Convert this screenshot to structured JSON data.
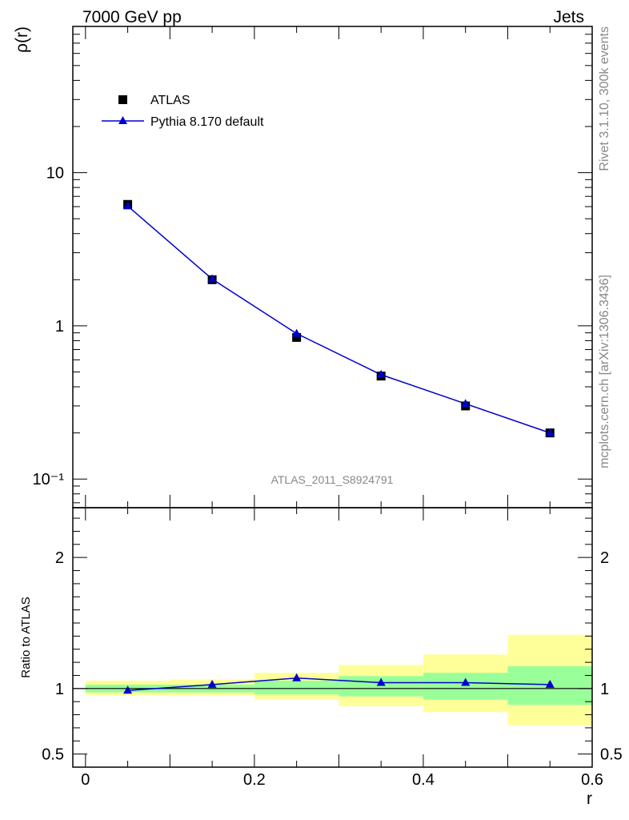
{
  "header": {
    "left_title": "7000 GeV pp",
    "right_title": "Jets"
  },
  "side_labels": {
    "rivet": "Rivet 3.1.10,  300k events",
    "mcplots": "mcplots.cern.ch [arXiv:1306.3436]"
  },
  "watermark": "ATLAS_2011_S8924791",
  "colors": {
    "data": "#000000",
    "mc": "#0000cc",
    "band_inner": "#99ff99",
    "band_outer": "#ffff99"
  },
  "legend": [
    {
      "label": "ATLAS",
      "marker": "square-marker"
    },
    {
      "label": "Pythia 8.170 default",
      "marker": "triangle-marker"
    }
  ],
  "chart_data": [
    {
      "type": "scatter",
      "title": "",
      "xlabel": "",
      "ylabel": "ρ(r)",
      "yscale": "log",
      "xlim": [
        -0.015,
        0.6
      ],
      "ylim": [
        0.065,
        90
      ],
      "y_tick_labels": [
        {
          "v": 10,
          "t": "10"
        },
        {
          "v": 1,
          "t": "1"
        },
        {
          "v": 0.1,
          "t": "10⁻¹"
        }
      ],
      "x": [
        0.05,
        0.15,
        0.25,
        0.35,
        0.45,
        0.55
      ],
      "series": [
        {
          "name": "ATLAS",
          "values": [
            6.2,
            2.0,
            0.84,
            0.47,
            0.3,
            0.2
          ]
        },
        {
          "name": "Pythia 8.170 default",
          "values": [
            6.05,
            2.02,
            0.89,
            0.48,
            0.31,
            0.2
          ]
        }
      ]
    },
    {
      "type": "line",
      "xlabel": "r",
      "ylabel": "Ratio to ATLAS",
      "xlim": [
        -0.015,
        0.6
      ],
      "ylim": [
        0.4,
        2.38
      ],
      "y_tick_labels": [
        {
          "v": 2,
          "t": "2"
        },
        {
          "v": 1,
          "t": "1"
        },
        {
          "v": 0.5,
          "t": "0.5"
        }
      ],
      "x_tick_labels": [
        {
          "v": 0,
          "t": "0"
        },
        {
          "v": 0.2,
          "t": "0.2"
        },
        {
          "v": 0.4,
          "t": "0.4"
        },
        {
          "v": 0.6,
          "t": "0.6"
        }
      ],
      "bin_edges": [
        0.0,
        0.1,
        0.2,
        0.3,
        0.4,
        0.5,
        0.6
      ],
      "band_inner": [
        [
          0.97,
          1.03
        ],
        [
          0.97,
          1.03
        ],
        [
          0.955,
          1.06
        ],
        [
          0.94,
          1.095
        ],
        [
          0.915,
          1.12
        ],
        [
          0.875,
          1.17
        ]
      ],
      "band_outer": [
        [
          0.95,
          1.06
        ],
        [
          0.95,
          1.07
        ],
        [
          0.915,
          1.12
        ],
        [
          0.865,
          1.18
        ],
        [
          0.82,
          1.26
        ],
        [
          0.72,
          1.41
        ]
      ],
      "series": [
        {
          "name": "Pythia 8.170 default / ATLAS",
          "x": [
            0.05,
            0.15,
            0.25,
            0.35,
            0.45,
            0.55
          ],
          "values": [
            0.985,
            1.03,
            1.08,
            1.045,
            1.045,
            1.03
          ]
        }
      ]
    }
  ]
}
